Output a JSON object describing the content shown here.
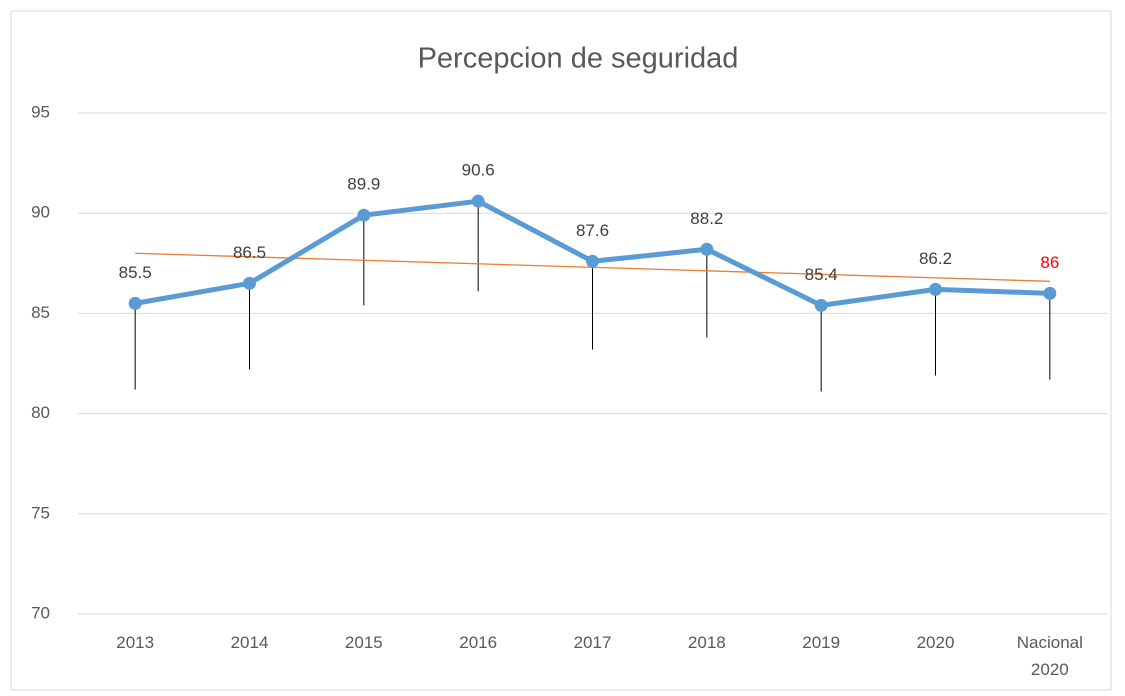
{
  "chart_data": {
    "type": "line",
    "title": "Percepcion de seguridad",
    "categories": [
      "2013",
      "2014",
      "2015",
      "2016",
      "2017",
      "2018",
      "2019",
      "2020",
      "Nacional 2020"
    ],
    "series": [
      {
        "name": "Percepcion de seguridad",
        "color": "#5b9bd5",
        "values": [
          85.5,
          86.5,
          89.9,
          90.6,
          87.6,
          88.2,
          85.4,
          86.2,
          86
        ],
        "errors": [
          4.3,
          4.3,
          4.5,
          4.5,
          4.4,
          4.4,
          4.3,
          4.3,
          4.3
        ],
        "label_colors": [
          "#404040",
          "#404040",
          "#404040",
          "#404040",
          "#404040",
          "#404040",
          "#404040",
          "#404040",
          "#ff0000"
        ]
      }
    ],
    "trendline": {
      "color": "#ed7d31",
      "start": 88.0,
      "end": 86.6
    },
    "ylim": [
      70,
      95
    ],
    "yticks": [
      70,
      75,
      80,
      85,
      90,
      95
    ],
    "grid": true
  }
}
